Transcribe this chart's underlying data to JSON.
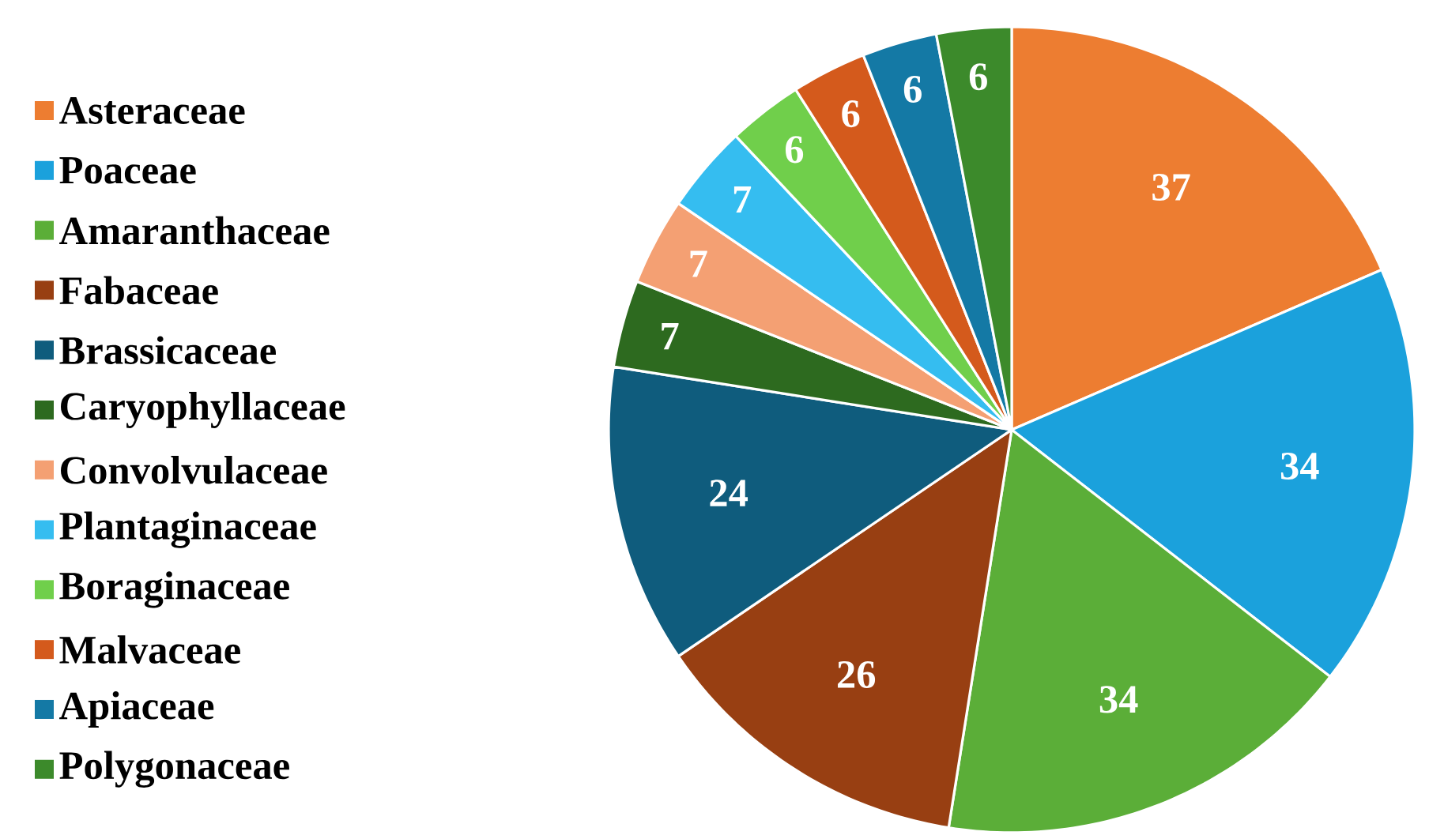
{
  "chart_data": {
    "type": "pie",
    "categories": [
      "Asteraceae",
      "Poaceae",
      "Amaranthaceae",
      "Fabaceae",
      "Brassicaceae",
      "Caryophyllaceae",
      "Convolvulaceae",
      "Plantaginaceae",
      "Boraginaceae",
      "Malvaceae",
      "Apiaceae",
      "Polygonaceae"
    ],
    "values": [
      37,
      34,
      34,
      26,
      24,
      7,
      7,
      7,
      6,
      6,
      6,
      6
    ],
    "colors": [
      "#ed7d31",
      "#1ba1dc",
      "#5bae38",
      "#983f12",
      "#0f5c7d",
      "#2d6a1f",
      "#f4a073",
      "#35bdf0",
      "#70cf4b",
      "#d45a1c",
      "#1479a5",
      "#3c8a2b"
    ],
    "data_labels": true,
    "legend": "left"
  }
}
